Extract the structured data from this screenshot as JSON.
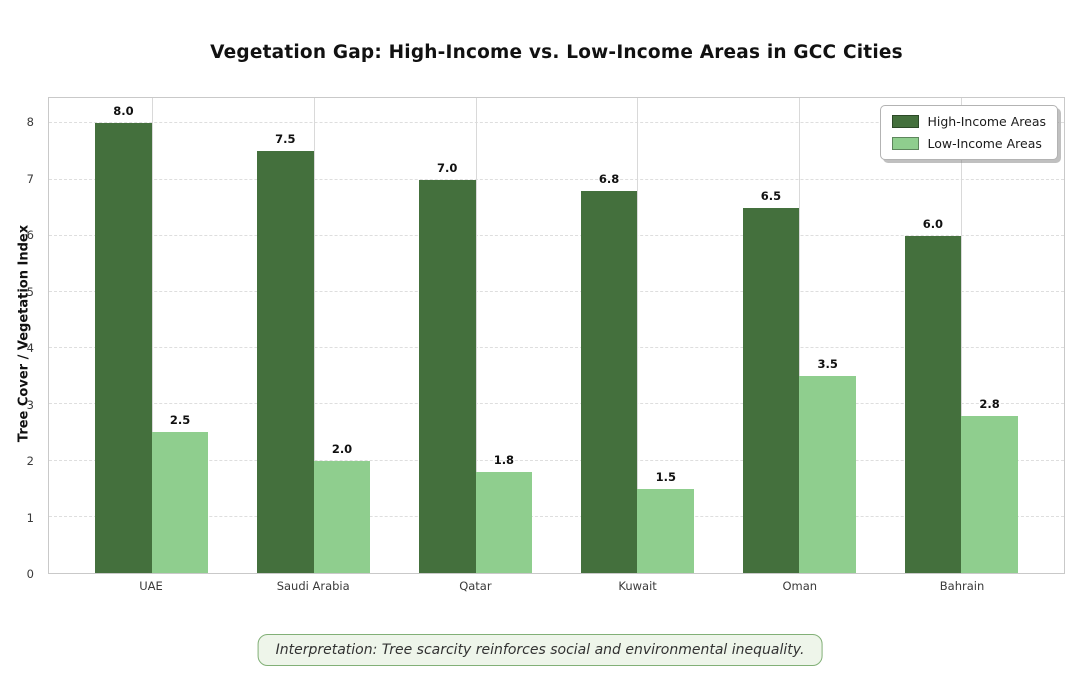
{
  "title": "Vegetation Gap: High-Income vs. Low-Income Areas in GCC Cities",
  "ylabel": "Tree Cover / Vegetation Index",
  "annotation": "Interpretation: Tree scarcity reinforces social and environmental inequality.",
  "colors": {
    "high_income": "#44703d",
    "low_income": "#8fce8e",
    "annotation_border": "#82b077",
    "annotation_bg": "#eef5ea"
  },
  "legend": {
    "position": "upper right",
    "items": [
      "High-Income Areas",
      "Low-Income Areas"
    ]
  },
  "chart_data": {
    "type": "bar",
    "title": "Vegetation Gap: High-Income vs. Low-Income Areas in GCC Cities",
    "categories": [
      "UAE",
      "Saudi Arabia",
      "Qatar",
      "Kuwait",
      "Oman",
      "Bahrain"
    ],
    "series": [
      {
        "name": "High-Income Areas",
        "color": "#44703d",
        "values": [
          8.0,
          7.5,
          7.0,
          6.8,
          6.5,
          6.0
        ]
      },
      {
        "name": "Low-Income Areas",
        "color": "#8fce8e",
        "values": [
          2.5,
          2.0,
          1.8,
          1.5,
          3.5,
          2.8
        ]
      }
    ],
    "xlabel": "",
    "ylabel": "Tree Cover / Vegetation Index",
    "ylim": [
      0,
      8.45
    ],
    "yticks": [
      0,
      1,
      2,
      3,
      4,
      5,
      6,
      7,
      8
    ],
    "xlim": [
      -0.635,
      5.635
    ],
    "bar_width_units": 0.35,
    "grid": "horizontal dashed, vertical solid at category centers",
    "legend_position": "upper right",
    "bar_value_labels": true,
    "value_label_format": "one-decimal"
  }
}
